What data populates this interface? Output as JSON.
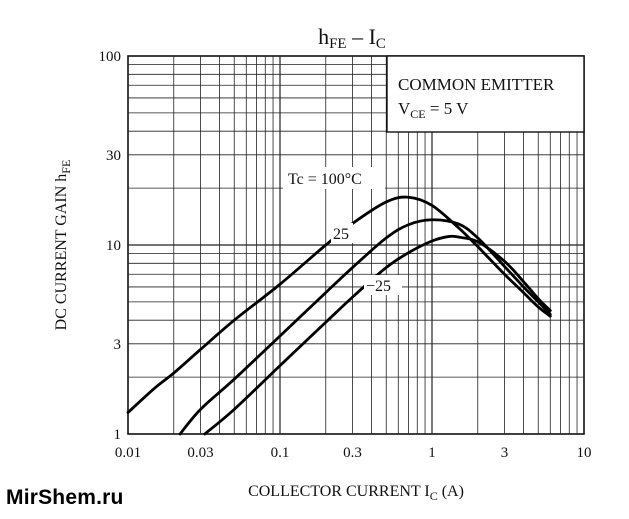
{
  "chart_data": {
    "type": "line",
    "title_main": "h",
    "title_sub": "FE",
    "title_sep": " – I",
    "title_sub2": "C",
    "ylabel_main": "DC CURRENT GAIN  h",
    "ylabel_sub": "FE",
    "xlabel_main": "COLLECTOR CURRENT   I",
    "xlabel_sub": "C",
    "xlabel_unit": "   (A)",
    "xscale": "log",
    "yscale": "log",
    "xlim": [
      0.01,
      10
    ],
    "ylim": [
      1,
      100
    ],
    "xticks": [
      0.01,
      0.03,
      0.1,
      0.3,
      1,
      3,
      10
    ],
    "xtick_labels": [
      "0.01",
      "0.03",
      "0.1",
      "0.3",
      "1",
      "3",
      "10"
    ],
    "yticks": [
      1,
      3,
      10,
      30,
      100
    ],
    "ytick_labels": [
      "1",
      "3",
      "10",
      "30",
      "100"
    ],
    "grid": true,
    "annotation_box": {
      "line1": "COMMON EMITTER",
      "line2_main": "V",
      "line2_sub": "CE",
      "line2_rest": " = 5 V",
      "placement": "top-right"
    },
    "series": [
      {
        "name": "Tc = 100°C",
        "x": [
          0.01,
          0.015,
          0.02,
          0.03,
          0.05,
          0.1,
          0.2,
          0.3,
          0.5,
          0.7,
          1.0,
          1.5,
          2.0,
          3.0,
          4.0,
          5.0,
          6.0
        ],
        "y": [
          1.3,
          1.75,
          2.1,
          2.8,
          4.0,
          6.2,
          10.0,
          13.0,
          16.9,
          17.9,
          16.2,
          12.3,
          9.8,
          7.0,
          5.6,
          4.7,
          4.2
        ]
      },
      {
        "name": "25",
        "x": [
          0.022,
          0.03,
          0.05,
          0.1,
          0.2,
          0.3,
          0.5,
          0.7,
          1.0,
          1.5,
          2.0,
          3.0,
          4.0,
          5.0,
          6.0
        ],
        "y": [
          1.0,
          1.35,
          1.95,
          3.3,
          5.6,
          7.6,
          10.9,
          12.8,
          13.6,
          12.9,
          10.9,
          7.7,
          6.0,
          5.0,
          4.3
        ]
      },
      {
        "name": "−25",
        "x": [
          0.032,
          0.05,
          0.1,
          0.2,
          0.3,
          0.5,
          0.7,
          1.0,
          1.3,
          1.5,
          2.0,
          3.0,
          4.0,
          5.0,
          6.0
        ],
        "y": [
          1.0,
          1.35,
          2.3,
          3.9,
          5.3,
          7.6,
          9.1,
          10.5,
          11.1,
          11.0,
          10.4,
          8.2,
          6.4,
          5.2,
          4.5
        ]
      }
    ],
    "curve_labels": [
      "Tc = 100°C",
      "25",
      "−25"
    ]
  },
  "watermark": "MirShem.ru"
}
